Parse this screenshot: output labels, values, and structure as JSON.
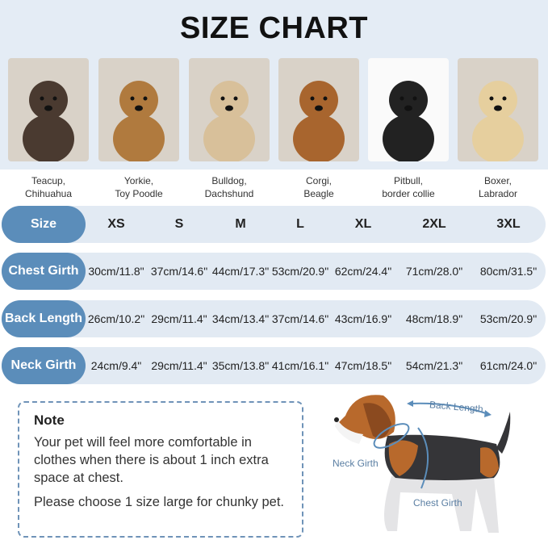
{
  "title": "SIZE CHART",
  "breeds": [
    {
      "label1": "Teacup,",
      "label2": "Chihuahua",
      "color": "#4a3a30"
    },
    {
      "label1": "Yorkie,",
      "label2": "Toy Poodle",
      "color": "#b07a3e"
    },
    {
      "label1": "Bulldog,",
      "label2": "Dachshund",
      "color": "#d8c09a"
    },
    {
      "label1": "Corgi,",
      "label2": "Beagle",
      "color": "#a8652e"
    },
    {
      "label1": "Pitbull,",
      "label2": "border collie",
      "color": "#222222"
    },
    {
      "label1": "Boxer,",
      "label2": "Labrador",
      "color": "#e6cf9e"
    }
  ],
  "rows": [
    {
      "label": "Size",
      "values": [
        "XS",
        "S",
        "M",
        "L",
        "XL",
        "2XL",
        "3XL"
      ]
    },
    {
      "label": "Chest Girth",
      "values": [
        "30cm/11.8\"",
        "37cm/14.6\"",
        "44cm/17.3\"",
        "53cm/20.9\"",
        "62cm/24.4\"",
        "71cm/28.0\"",
        "80cm/31.5\""
      ]
    },
    {
      "label": "Back Length",
      "values": [
        "26cm/10.2\"",
        "29cm/11.4\"",
        "34cm/13.4\"",
        "37cm/14.6\"",
        "43cm/16.9\"",
        "48cm/18.9\"",
        "53cm/20.9\""
      ]
    },
    {
      "label": "Neck Girth",
      "values": [
        "24cm/9.4\"",
        "29cm/11.4\"",
        "35cm/13.8\"",
        "41cm/16.1\"",
        "47cm/18.5\"",
        "54cm/21.3\"",
        "61cm/24.0\""
      ]
    }
  ],
  "note": {
    "heading": "Note",
    "p1": "Your pet will feel more comfortable in clothes when there is about 1 inch extra space at chest.",
    "p2": "Please choose 1 size large for chunky pet."
  },
  "diagram": {
    "back": "Back Length",
    "neck": "Neck Girth",
    "chest": "Chest Girth"
  },
  "colors": {
    "accent": "#5b8dba",
    "row_bg": "#e2eaf3",
    "band": "#e4ecf5"
  }
}
